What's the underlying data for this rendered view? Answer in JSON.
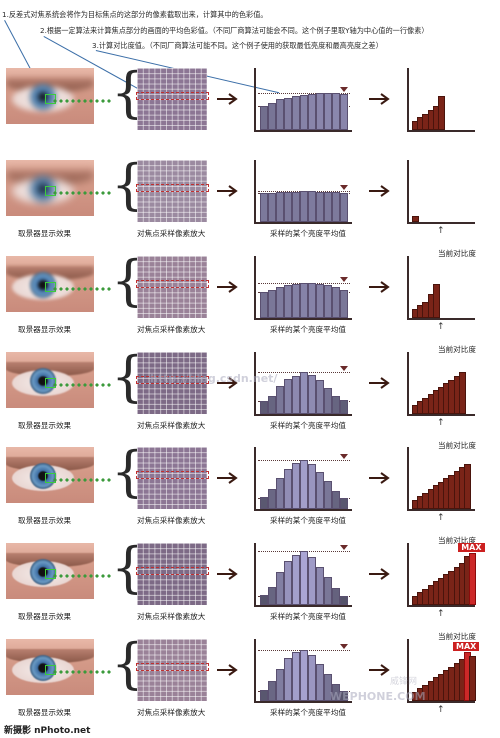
{
  "notes": {
    "n1": "1.反差式对焦系统会将作为目标焦点的这部分的像素截取出来，计算其中的色彩值。",
    "n2": "2.根据一定算法来计算焦点部分的画面的平均色彩值。（不同厂商算法可能会不同。这个例子里取Y轴为中心值的一行像素）",
    "n3": "3.计算对比度值。（不同厂商算法可能不同。这个例子使用的获取最低亮度和最高亮度之差）"
  },
  "captions": {
    "viewfinder": "取景器显示效果",
    "sampling": "对焦点采样像素放大",
    "average": "采样的某个亮度平均值",
    "contrast": "当前对比度"
  },
  "max_label": "MAX",
  "watermarks": {
    "blog": "http://blog.csdn.net/",
    "brand": "WEPHONE.COM",
    "zh": "威锋网"
  },
  "footer": "新摄影 nPhoto.net",
  "colors": {
    "contrast_bar": "#7a2418",
    "max_bar": "#cc2828",
    "focus_box": "#3ccc3c",
    "dots": "#3b9a3b"
  },
  "icons": [
    "brace-icon",
    "right-arrow-icon",
    "triangle-marker-icon",
    "up-arrow-icon"
  ],
  "rows": [
    {
      "avg": [
        40,
        46,
        52,
        55,
        58,
        60,
        62,
        63,
        64,
        64,
        62
      ],
      "contrast": [
        2,
        3,
        4,
        5,
        6,
        9
      ]
    },
    {
      "avg": [
        50,
        50,
        51,
        51,
        51,
        52,
        52,
        51,
        51,
        51,
        50
      ],
      "contrast": [
        1
      ]
    },
    {
      "avg": [
        44,
        48,
        52,
        56,
        58,
        60,
        60,
        58,
        56,
        52,
        48
      ],
      "contrast": [
        2,
        3,
        4,
        6,
        9
      ]
    },
    {
      "avg": [
        20,
        30,
        48,
        60,
        66,
        72,
        68,
        58,
        44,
        30,
        22
      ],
      "contrast": [
        2,
        3,
        4,
        5,
        6,
        7,
        8,
        9,
        10,
        11
      ]
    },
    {
      "avg": [
        18,
        32,
        52,
        70,
        80,
        86,
        78,
        64,
        48,
        30,
        16
      ],
      "contrast": [
        2,
        3,
        4,
        5,
        6,
        7,
        8,
        9,
        10,
        11,
        12
      ]
    },
    {
      "avg": [
        14,
        30,
        56,
        76,
        88,
        94,
        84,
        66,
        48,
        28,
        12
      ],
      "contrast": [
        2,
        3,
        4,
        5,
        6,
        7,
        8,
        9,
        10,
        11,
        13,
        14
      ]
    },
    {
      "avg": [
        16,
        32,
        54,
        74,
        86,
        90,
        80,
        64,
        46,
        28,
        14
      ],
      "contrast": [
        2,
        3,
        4,
        5,
        6,
        7,
        8,
        9,
        10,
        11,
        13,
        12
      ]
    }
  ]
}
